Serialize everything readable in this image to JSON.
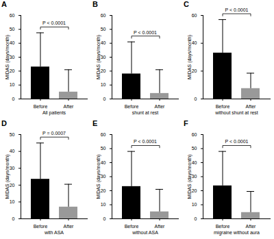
{
  "chart_data": [
    {
      "type": "bar",
      "title": "A",
      "xlabel": "All patients",
      "ylabel": "MIDAS (days/month)",
      "categories": [
        "Before",
        "After"
      ],
      "values": [
        23,
        5
      ],
      "errors": [
        24.5,
        16
      ],
      "colors": [
        "#000000",
        "#999999"
      ],
      "ylim": [
        0,
        60
      ],
      "yticks": [
        0,
        10,
        20,
        30,
        40,
        50,
        60
      ],
      "annotation": "P < 0.0001"
    },
    {
      "type": "bar",
      "title": "B",
      "xlabel": "shunt at rest",
      "ylabel": "MIDAS (days/month)",
      "categories": [
        "Before",
        "After"
      ],
      "values": [
        18,
        4
      ],
      "errors": [
        23,
        17
      ],
      "colors": [
        "#000000",
        "#999999"
      ],
      "ylim": [
        0,
        60
      ],
      "yticks": [
        0,
        10,
        20,
        30,
        40,
        50,
        60
      ],
      "annotation": "P < 0.0001"
    },
    {
      "type": "bar",
      "title": "C",
      "xlabel": "without shunt at rest",
      "ylabel": "MIDAS (days/month)",
      "categories": [
        "Before",
        "After"
      ],
      "values": [
        33,
        7.5
      ],
      "errors": [
        24,
        11
      ],
      "colors": [
        "#000000",
        "#999999"
      ],
      "ylim": [
        0,
        60
      ],
      "yticks": [
        0,
        20,
        40,
        60
      ],
      "annotation": "P < 0.0001"
    },
    {
      "type": "bar",
      "title": "D",
      "xlabel": "with ASA",
      "ylabel": "MIDAS (days/month)",
      "categories": [
        "Before",
        "After"
      ],
      "values": [
        23.5,
        7
      ],
      "errors": [
        21.5,
        13.5
      ],
      "colors": [
        "#000000",
        "#999999"
      ],
      "ylim": [
        0,
        50
      ],
      "yticks": [
        0,
        10,
        20,
        30,
        40,
        50
      ],
      "annotation": "P = 0.0007"
    },
    {
      "type": "bar",
      "title": "E",
      "xlabel": "without ASA",
      "ylabel": "MIDAS (days/month)",
      "categories": [
        "Before",
        "After"
      ],
      "values": [
        23,
        5
      ],
      "errors": [
        25,
        16
      ],
      "colors": [
        "#000000",
        "#999999"
      ],
      "ylim": [
        0,
        60
      ],
      "yticks": [
        0,
        10,
        20,
        30,
        40,
        50,
        60
      ],
      "annotation": "P < 0.0001"
    },
    {
      "type": "bar",
      "title": "F",
      "xlabel": "migraine without aura",
      "ylabel": "MIDAS (days/month)",
      "categories": [
        "Before",
        "After"
      ],
      "values": [
        23.5,
        4.5
      ],
      "errors": [
        24.5,
        15
      ],
      "colors": [
        "#000000",
        "#999999"
      ],
      "ylim": [
        0,
        60
      ],
      "yticks": [
        0,
        10,
        20,
        30,
        40,
        50,
        60
      ],
      "annotation": "P < 0.0001"
    }
  ]
}
